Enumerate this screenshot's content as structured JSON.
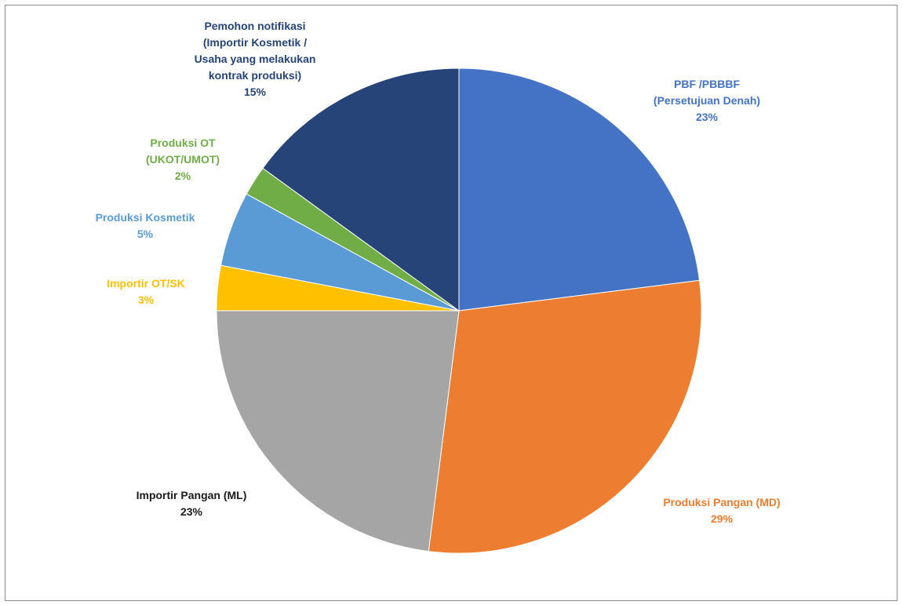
{
  "chart_data": {
    "type": "pie",
    "start_angle_deg": 0,
    "direction": "clockwise",
    "slices": [
      {
        "label_lines": [
          "PBF /PBBBF",
          "(Persetujuan Denah)"
        ],
        "percent_label": "23%",
        "value": 23,
        "color": "#4472c4",
        "label_color": "#4472c4"
      },
      {
        "label_lines": [
          "Produksi Pangan (MD)"
        ],
        "percent_label": "29%",
        "value": 29,
        "color": "#ed7d31",
        "label_color": "#ed7d31"
      },
      {
        "label_lines": [
          "Importir Pangan (ML)"
        ],
        "percent_label": "23%",
        "value": 23,
        "color": "#a5a5a5",
        "label_color": "#1a1a1a"
      },
      {
        "label_lines": [
          "Importir OT/SK"
        ],
        "percent_label": "3%",
        "value": 3,
        "color": "#ffc000",
        "label_color": "#ffc000"
      },
      {
        "label_lines": [
          "Produksi Kosmetik"
        ],
        "percent_label": "5%",
        "value": 5,
        "color": "#5b9bd5",
        "label_color": "#5b9bd5"
      },
      {
        "label_lines": [
          "Produksi OT",
          "(UKOT/UMOT)"
        ],
        "percent_label": "2%",
        "value": 2,
        "color": "#70ad47",
        "label_color": "#70ad47"
      },
      {
        "label_lines": [
          "Pemohon notifikasi",
          "(Importir Kosmetik /",
          "Usaha yang melakukan",
          "kontrak produksi)"
        ],
        "percent_label": "15%",
        "value": 15,
        "color": "#264478",
        "label_color": "#264478"
      }
    ]
  }
}
